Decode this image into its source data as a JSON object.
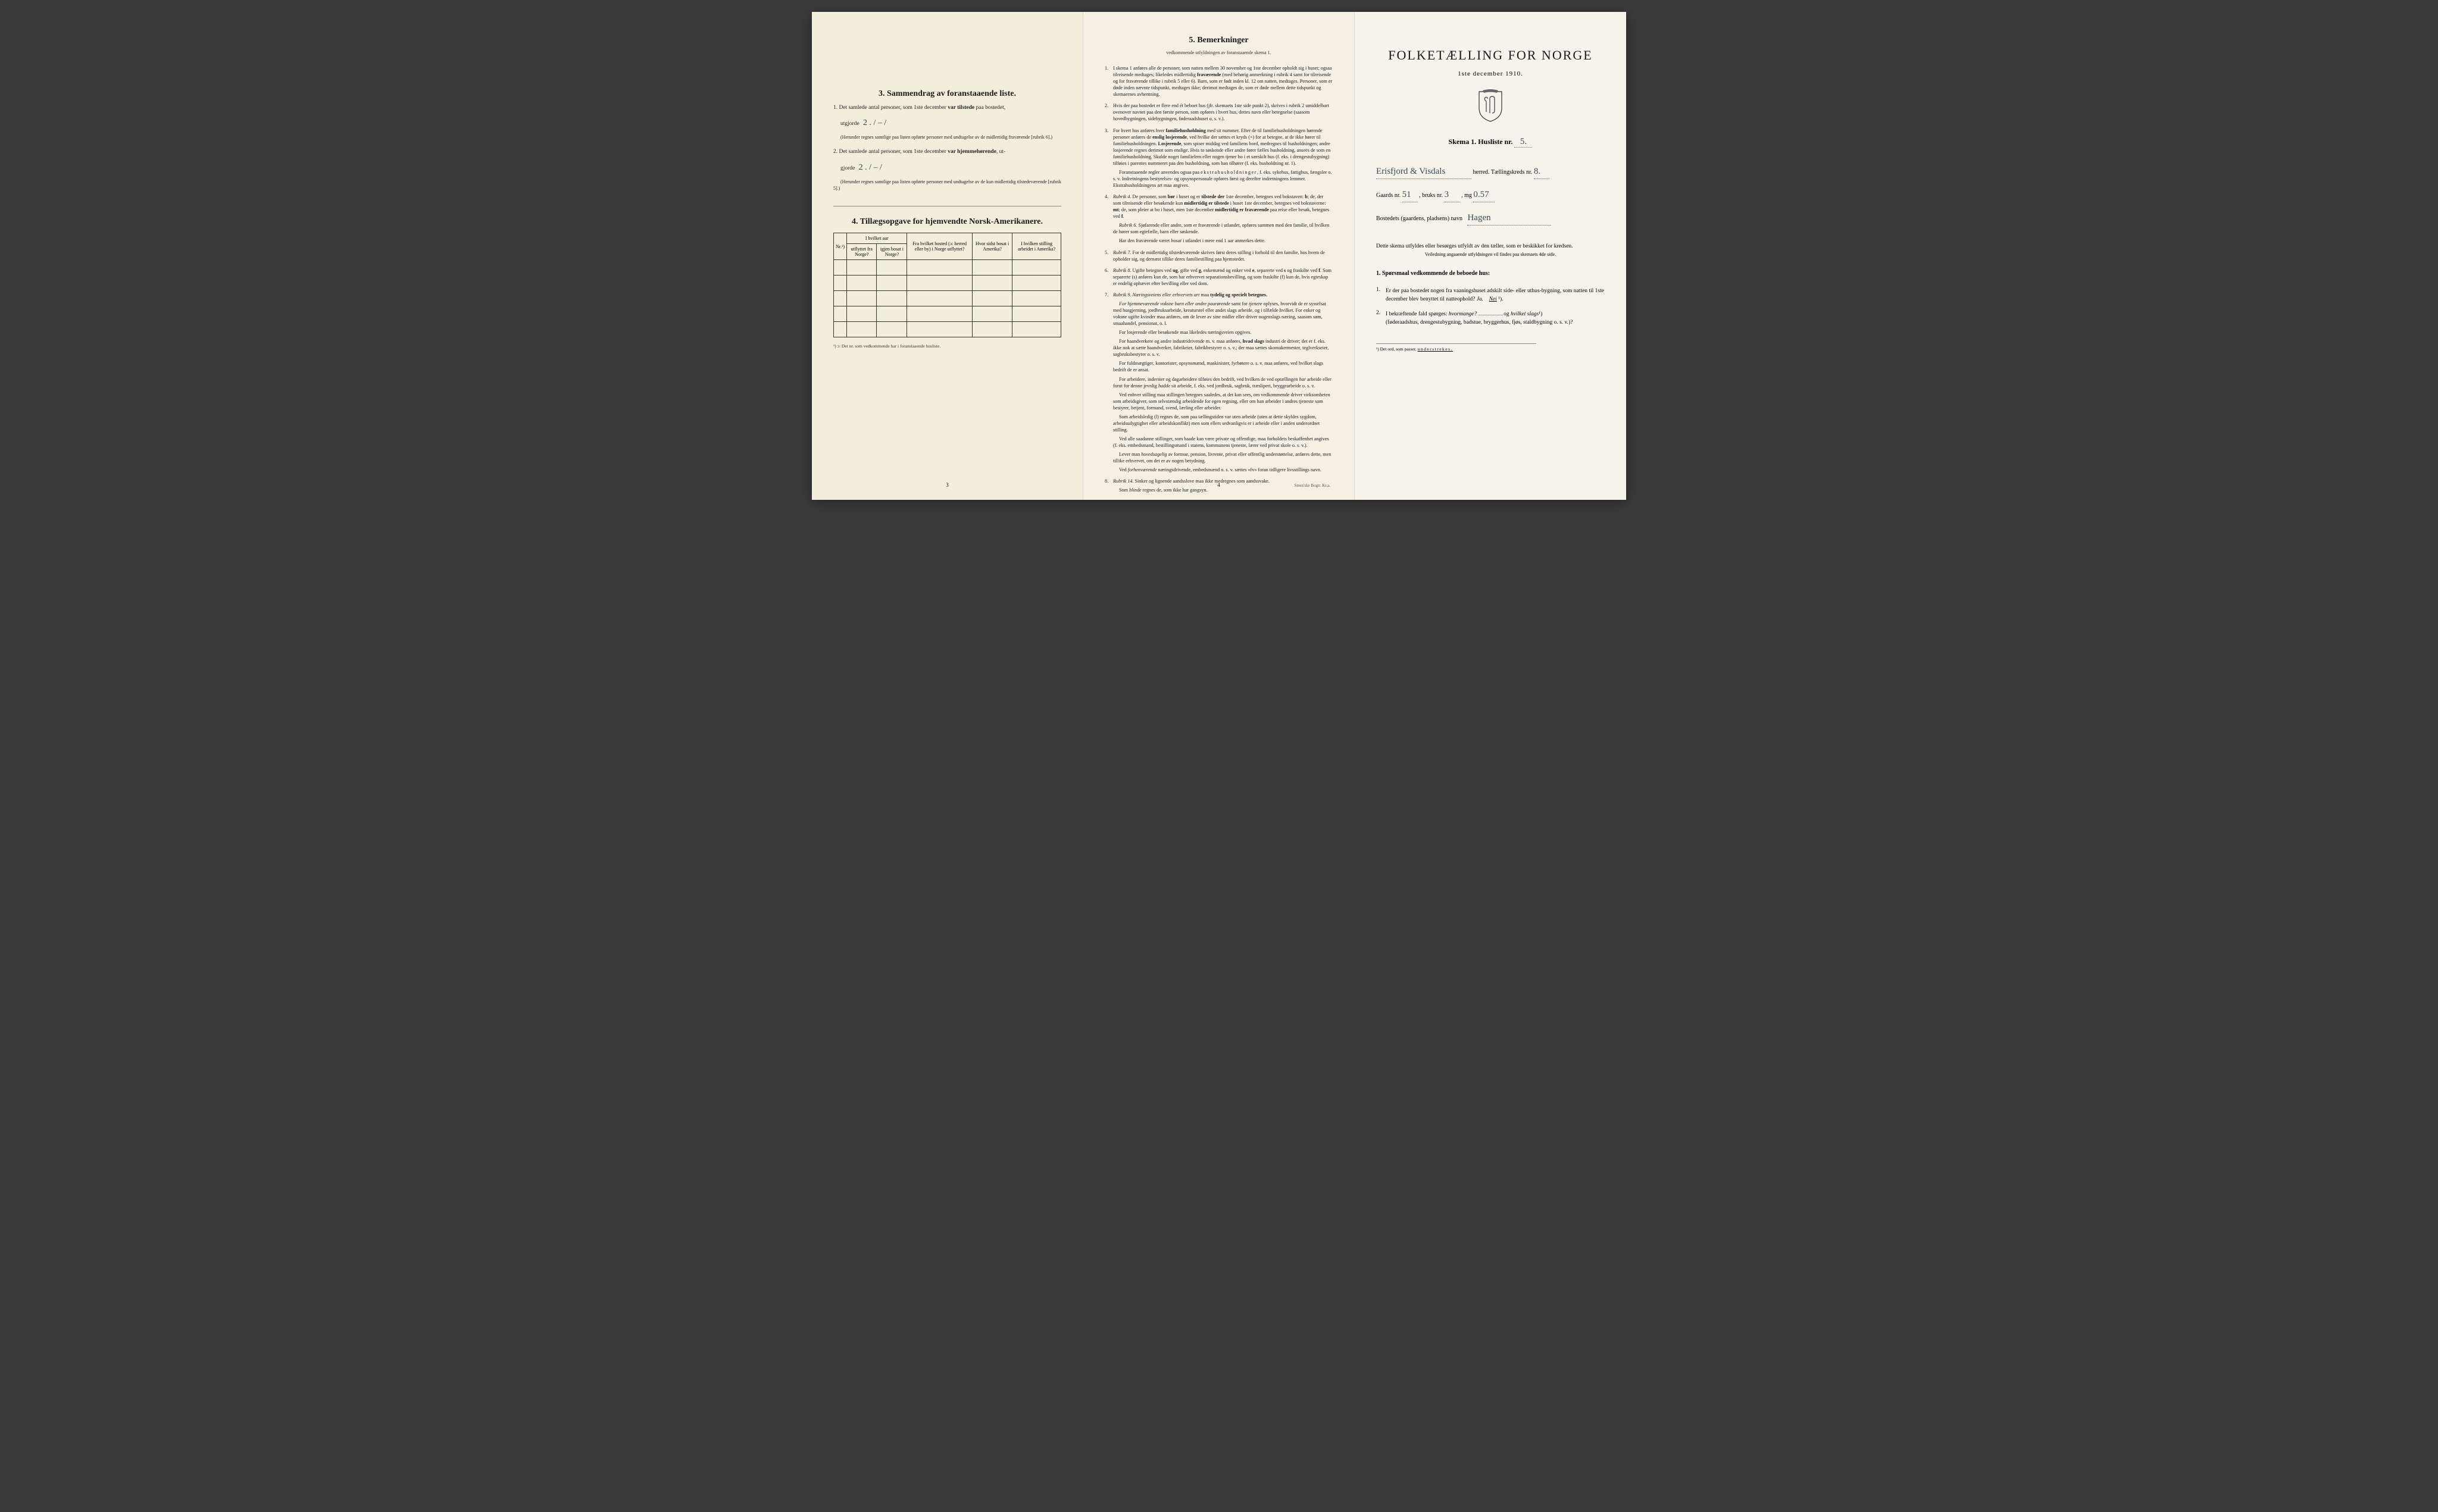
{
  "page1": {
    "sec3_title": "3.   Sammendrag av foranstaaende liste.",
    "item1_lead": "1.  Det samlede antal personer, som 1ste december",
    "item1_bold": " var tilstede",
    "item1_tail": " paa bostedet,",
    "item1_line2a": "utgjorde ",
    "item1_hw": "2 . / – /",
    "item1_fine": "(Herunder regnes samtlige paa listen opførte personer med undtagelse av de midlertidig fraværende [rubrik 6].)",
    "item2_lead": "2.  Det samlede antal personer, som 1ste december",
    "item2_bold": " var hjemmehørende",
    "item2_tail": ", ut-",
    "item2_line2a": "gjorde ",
    "item2_hw": "2   . / – /",
    "item2_fine": "(Herunder regnes samtlige paa listen opførte personer med undtagelse av de kun midlertidig tilstedeværende [rubrik 5].)",
    "sec4_title": "4.  Tillægsopgave for hjemvendte Norsk-Amerikanere.",
    "table": {
      "h_nr": "Nr.¹)",
      "h_aar": "I hvilket aar",
      "h_ut": "utflyttet fra Norge?",
      "h_igjen": "igjen bosat i Norge?",
      "h_bosted": "Fra hvilket bosted (ɔ: herred eller by) i Norge utflyttet?",
      "h_sidst": "Hvor sidst bosat i Amerika?",
      "h_stilling": "I hvilken stilling arbeidet i Amerika?"
    },
    "footnote": "¹) ɔ: Det nr. som vedkommende har i foranstaaende husliste.",
    "pagenum": "3"
  },
  "page2": {
    "title": "5.   Bemerkninger",
    "subtitle": "vedkommende utfyldningen av foranstaaende skema 1.",
    "items": [
      {
        "n": "1.",
        "t": "I skema 1 anføres alle de personer, som natten mellem 30 november og 1ste december opholdt sig i huset; ogsaa tilreisende medtages; likeledes midlertidig <b>fraværende</b> (med behørig anmerkning i rubrik 4 samt for tilreisende og for fraværende tillike i rubrik 5 eller 6). Barn, som er født inden kl. 12 om natten, medtages. Personer, som er døde inden nævnte tidspunkt, medtages ikke; derimot medtages de, som er døde mellem dette tidspunkt og skemaernes avhentning."
      },
      {
        "n": "2.",
        "t": "Hvis der paa bostedet er flere end ét beboet hus (jfr. skemaets 1ste side punkt 2), skrives i rubrik 2 umiddelbart ovenover navnet paa den første person, som opføres i hvert hus, dettes navn eller betegnelse (saasom hovedbygningen, sidebygningen, føderaadshuset o. s. v.)."
      },
      {
        "n": "3.",
        "t": "For hvert hus anføres hver <b>familiehusholdning</b> med sit nummer. Efter de til familiehusholdningen hørende personer anføres de <b>enslig losjerende</b>, ved hvilke der sættes et kryds (×) for at betegne, at de ikke hører til familiehusholdningen. <b>Losjerende</b>, som spiser middag ved familiens bord, medregnes til husholdningen; andre losjerende regnes derimot som enslige. Hvis to søskende eller andre fører fælles husholdning, ansees de som en familiehusholdning. Skulde noget familielem eller nogen tjener bo i et særskilt hus (f. eks. i drengestubygning) tilføies i parentes nummeret paa den husholdning, som han tilhører (f. eks. husholdning nr. 1).",
        "subs": [
          "Foranstaaende regler anvendes ogsaa paa <span class='spaced'>ekstrahusholdninger</span>, f. eks. sykehus, fattighus, fængsler o. s. v. Indretningens bestyrelses- og opsynspersonale opføres først og derefter indretningens lemmer. Ekstrahusholdningens art maa angives."
        ]
      },
      {
        "n": "4.",
        "t": "<i>Rubrik 4.</i>  De personer, som <b>bør</b> i huset og er <b>tilstede der</b> 1ste december, betegnes ved bokstaven: <b>b</b>; de, der som tilreisende eller besøkende kun <b>midlertidig er tilstede</b> i huset 1ste december, betegnes ved bokstaverne: <b>mt</b>; de, som pleier at bo i huset, men 1ste december <b>midlertidig er fraværende</b> paa reise eller besøk, betegnes ved <b>f</b>.",
        "subs": [
          "<i>Rubrik 6.</i>  Sjøfarende eller andre, som er fraværende i utlandet, opføres sammen med den familie, til hvilken de hører som egtefælle, barn eller søskende.",
          "Har den fraværende været <i>bosat</i> i utlandet i mere end 1 aar anmerkes dette."
        ]
      },
      {
        "n": "5.",
        "t": "<i>Rubrik 7.</i>  For de midlertidig tilstedeværende skrives først deres stilling i forhold til den familie, hos hvem de opholder sig, og dernæst tillike deres familiestilling paa hjemstedet."
      },
      {
        "n": "6.",
        "t": "<i>Rubrik 8.</i>  Ugifte betegnes ved <b>ug</b>, gifte ved <b>g</b>, enkemænd og enker ved <b>e</b>, separerte ved <b>s</b> og fraskilte ved <b>f</b>. Som separerte (s) anføres kun de, som har erhvervet separationsbevilling, og som fraskilte (f) kun de, hvis egteskap er endelig ophævet efter bevilling eller ved dom."
      },
      {
        "n": "7.",
        "t": "<i>Rubrik 9.</i>  <i>Næringsveiens eller erhvervets art</i> maa <b>tydelig og specielt betegnes.</b>",
        "subs": [
          "<i>For hjemmeværende voksne barn eller andre paarørende</i> samt for <i>tjenere</i> oplyses, hvorvidt de er sysselsat med husgjerning, jordbruksarbeide, kreaturstel eller andet slags arbeide, og i tilfælde hvilket. For enker og voksne ugifte kvinder maa anføres, om de lever av sine midler eller driver nogenslags næring, saasom søm, smaahandel, pensionat, o. l.",
          "For losjerende eller besøkende maa likeledes næringsveien opgives.",
          "For haandverkere og andre industridrivende m. v. maa anføres, <b>hvad slags</b> industri de driver; det er f. eks. ikke nok at sætte haandverker, fabrikeier, fabrikbestyrer o. s. v.; der maa sættes skomakermester, teglverkseier, sagbruksbestyrer o. s. v.",
          "For fuldmægtiger, kontorister, opsynsmænd, maskinister, fyrbøtere o. s. v. maa anføres, ved hvilket slags bedrift de er ansat.",
          "For arbeidere, inderster og dagarbeidere tilføies den bedrift, ved hvilken de ved optællingen <i>har</i> arbeide eller forut for denne jevnlig <i>hadde</i> sit arbeide, f. eks. ved jordbruk, sagbruk, træsliperi, bryggearbeide o. s. v.",
          "Ved enhver stilling maa stillingen betegnes saaledes, at det kan sees, om vedkommende driver virksomheten som arbeidsgiver, som selvstændig arbeidende for egen regning, eller om han arbeider i andres tjeneste som bestyrer, betjent, formand, svend, lærling eller arbeider.",
          "Som arbeidsledig (l) regnes de, som paa tællingstiden var uten arbeide (uten at dette skyldes sygdom, arbeidsudygtighet eller arbeidskonflikt) men som ellers sedvanligvis er i arbeide eller i anden underordnet stilling.",
          "Ved alle saadanne stillinger, som baade kan være private og offentlige, maa forholdets beskaffenhet angives (f. eks. embedsmand, bestillingsmand i statens, kommunens tjeneste, lærer ved privat skole o. s. v.).",
          "Lever man <i>hovedsagelig</i> av formue, pension, livrente, privat eller offentlig understøttelse, anføres dette, men tillike erhvervet, om det er av nogen betydning.",
          "Ved <i>forhenværende</i> næringsdrivende, embedsmænd o. s. v. sættes «fv» foran tidligere livsstillings navn."
        ]
      },
      {
        "n": "8.",
        "t": "<i>Rubrik 14.</i>  Sinker og lignende aandsslove maa ikke medregnes som aandssvake.",
        "subs": [
          "Som <i>blinde</i> regnes de, som ikke har gangsyn."
        ]
      }
    ],
    "pagenum": "4",
    "printer": "Steen'ske Bogtr.  Kr.a."
  },
  "page3": {
    "title": "FOLKETÆLLING FOR NORGE",
    "date": "1ste december 1910.",
    "skema_a": "Skema 1.   Husliste nr.",
    "skema_hw": "5.",
    "herred_hw": "Erisfjord & Visdals",
    "herred_lbl": "herred.   Tællingskreds nr.",
    "kreds_hw": "8.",
    "gaard_a": "Gaards nr.",
    "gaard_hw": "51",
    "bruk_a": ", bruks nr.",
    "bruk_hw": "3",
    "mg_a": ",     mg",
    "mg_hw": "0.57",
    "bosted_a": "Bostedets (gaardens, pladsens) navn",
    "bosted_hw": "Hagen",
    "instr": "Dette skema utfyldes eller besørges utfyldt av den tæller, som er beskikket for kredsen.",
    "instr_sub": "Veiledning angaaende utfyldningen vil findes paa skemaets 4de side.",
    "q_head": "1. Spørsmaal vedkommende de beboede hus:",
    "q1_n": "1.",
    "q1": "Er der paa bostedet nogen fra vaaningshuset adskilt side- eller uthus-bygning, som natten til 1ste december blev benyttet til natteophold?   ",
    "q1_ja": "Ja.",
    "q1_nei": "Nei",
    "q1_sup": " ¹).",
    "q2_n": "2.",
    "q2": "I bekræftende fald spørges: ",
    "q2_i1": "hvormange?",
    "q2_mid": "          og ",
    "q2_i2": "hvilket slags",
    "q2_sup": "¹)",
    "q2_tail": "(føderaadshus, drengestubygning, badstue, bryggerhus, fjøs, staldbygning o. s. v.)?",
    "footnote": "¹) Det ord, som passer, ",
    "footnote_u": "understrekes."
  }
}
